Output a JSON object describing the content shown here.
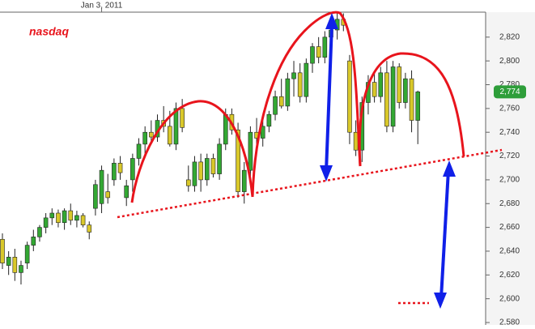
{
  "chart_data": {
    "type": "candlestick",
    "title": "nasdaq",
    "categories": [
      null,
      null,
      null,
      null,
      null,
      null,
      null,
      null,
      null,
      null,
      null,
      null,
      null,
      null,
      null,
      null,
      "Jan 3, 2011",
      null,
      null,
      null,
      null,
      null,
      null,
      null,
      null,
      null,
      null,
      null,
      null,
      null,
      null,
      null,
      null,
      null,
      null,
      null,
      null,
      null,
      null,
      null,
      null,
      null,
      null,
      null,
      null,
      null,
      null,
      null,
      null,
      null,
      null,
      null,
      null,
      null,
      null,
      null,
      null,
      null,
      null,
      null,
      null,
      null,
      null,
      null,
      null,
      null,
      null,
      null
    ],
    "open": [
      2650,
      2628,
      2635,
      2622,
      2630,
      2645,
      2652,
      2660,
      2668,
      2672,
      2664,
      2674,
      2666,
      2670,
      2662,
      2676,
      2680,
      2690,
      2700,
      2714,
      2685,
      2700,
      2718,
      2730,
      2740,
      2736,
      2750,
      2745,
      2730,
      2760,
      2700,
      2695,
      2715,
      2700,
      2718,
      2705,
      2730,
      2755,
      2742,
      2690,
      2708,
      2740,
      2735,
      2745,
      2755,
      2770,
      2762,
      2785,
      2790,
      2770,
      2798,
      2812,
      2803,
      2820,
      2826,
      2835,
      2800,
      2740,
      2725,
      2765,
      2782,
      2770,
      2790,
      2745,
      2795,
      2765,
      2785,
      2750
    ],
    "high": [
      2655,
      2640,
      2642,
      2632,
      2648,
      2658,
      2662,
      2672,
      2676,
      2675,
      2676,
      2680,
      2674,
      2672,
      2665,
      2700,
      2712,
      2705,
      2718,
      2720,
      2700,
      2722,
      2735,
      2745,
      2750,
      2755,
      2762,
      2758,
      2765,
      2768,
      2712,
      2720,
      2722,
      2722,
      2722,
      2735,
      2760,
      2760,
      2748,
      2715,
      2745,
      2752,
      2750,
      2758,
      2775,
      2785,
      2790,
      2800,
      2798,
      2802,
      2815,
      2820,
      2825,
      2832,
      2840,
      2840,
      2805,
      2750,
      2770,
      2788,
      2790,
      2795,
      2800,
      2800,
      2798,
      2790,
      2792,
      2775
    ],
    "low": [
      2625,
      2620,
      2615,
      2612,
      2625,
      2640,
      2648,
      2655,
      2662,
      2660,
      2658,
      2662,
      2660,
      2660,
      2650,
      2670,
      2672,
      2680,
      2695,
      2700,
      2678,
      2690,
      2712,
      2722,
      2730,
      2732,
      2740,
      2728,
      2725,
      2740,
      2690,
      2690,
      2690,
      2695,
      2702,
      2700,
      2725,
      2738,
      2685,
      2680,
      2702,
      2730,
      2728,
      2740,
      2750,
      2760,
      2758,
      2770,
      2765,
      2765,
      2790,
      2798,
      2798,
      2810,
      2818,
      2825,
      2730,
      2720,
      2715,
      2755,
      2765,
      2765,
      2740,
      2740,
      2760,
      2760,
      2740,
      2730
    ],
    "close": [
      2630,
      2635,
      2622,
      2628,
      2645,
      2652,
      2660,
      2668,
      2672,
      2664,
      2674,
      2666,
      2670,
      2662,
      2656,
      2696,
      2708,
      2685,
      2714,
      2706,
      2695,
      2718,
      2730,
      2740,
      2736,
      2750,
      2745,
      2730,
      2760,
      2744,
      2695,
      2715,
      2700,
      2718,
      2705,
      2730,
      2755,
      2742,
      2690,
      2708,
      2740,
      2735,
      2745,
      2755,
      2770,
      2762,
      2785,
      2790,
      2770,
      2798,
      2812,
      2803,
      2820,
      2826,
      2835,
      2830,
      2740,
      2725,
      2765,
      2782,
      2770,
      2790,
      2745,
      2795,
      2765,
      2785,
      2750,
      2774
    ],
    "up_color": "#33a833",
    "down_color": "#d9c82a",
    "ylim": [
      2580,
      2841
    ],
    "yticks": [
      {
        "value": 2580,
        "label": "2,580"
      },
      {
        "value": 2600,
        "label": "2,600"
      },
      {
        "value": 2620,
        "label": "2,620"
      },
      {
        "value": 2640,
        "label": "2,640"
      },
      {
        "value": 2660,
        "label": "2,660"
      },
      {
        "value": 2680,
        "label": "2,680"
      },
      {
        "value": 2700,
        "label": "2,700"
      },
      {
        "value": 2720,
        "label": "2,720"
      },
      {
        "value": 2740,
        "label": "2,740"
      },
      {
        "value": 2760,
        "label": "2,760"
      },
      {
        "value": 2780,
        "label": "2,780"
      },
      {
        "value": 2800,
        "label": "2,800"
      },
      {
        "value": 2820,
        "label": "2,820"
      }
    ],
    "last_label": {
      "value": 2774,
      "label": "2,774"
    }
  }
}
